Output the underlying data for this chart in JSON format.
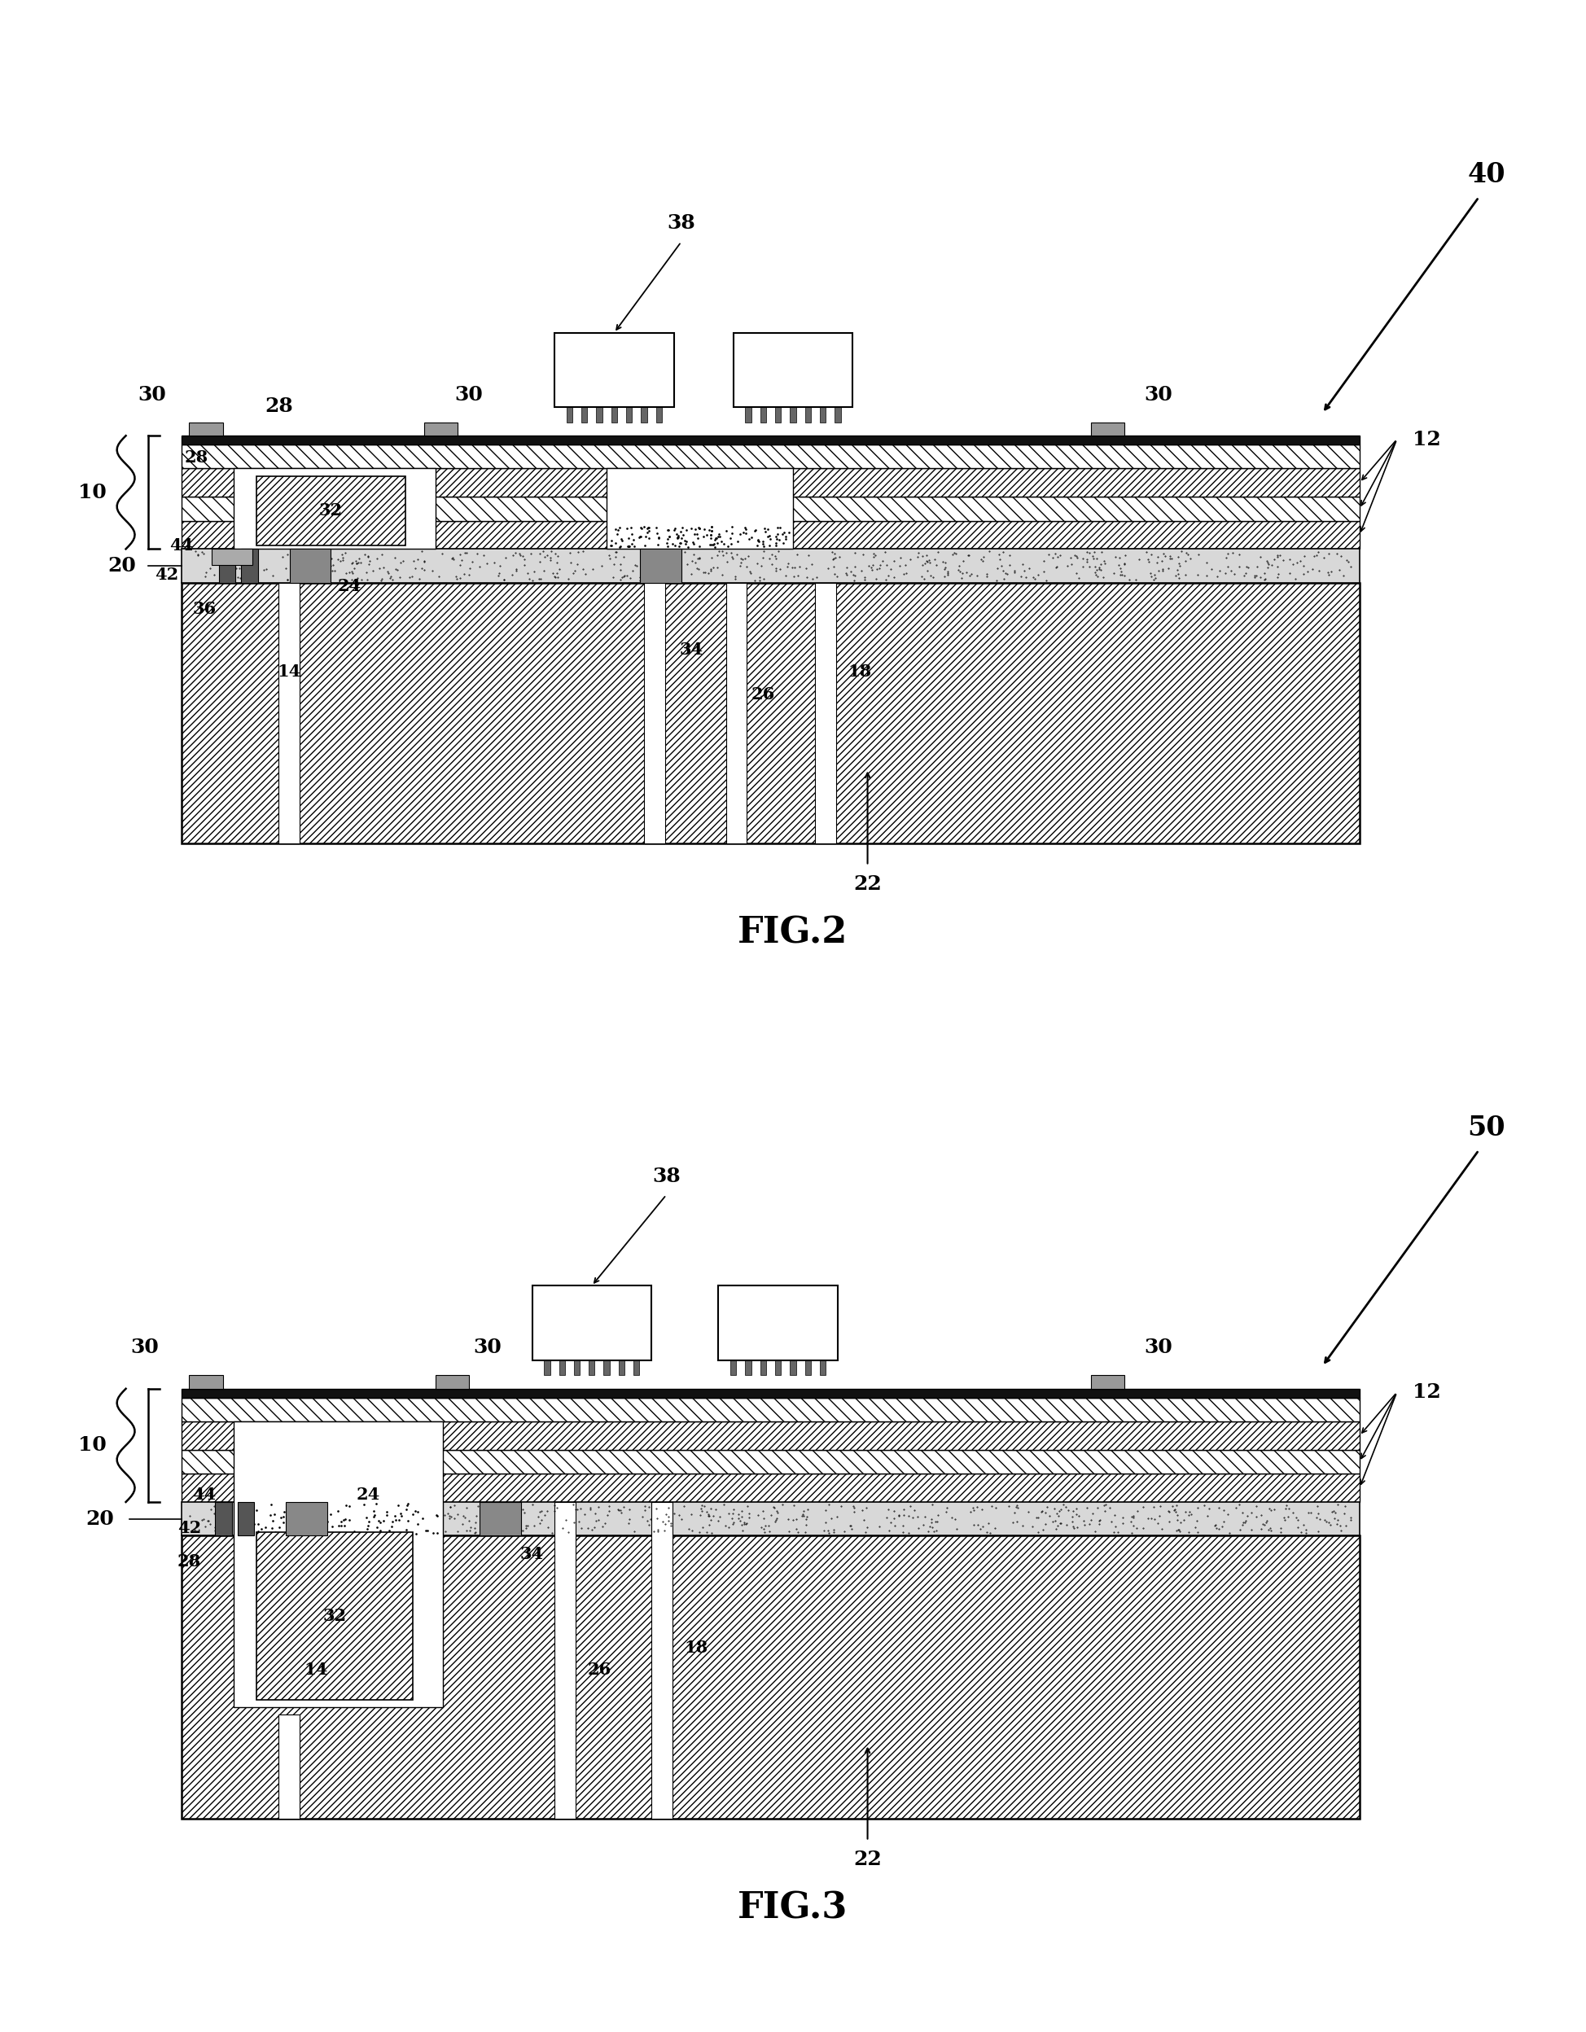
{
  "bg_color": "#ffffff",
  "lc": "#000000",
  "fig2_label": "FIG.2",
  "fig3_label": "FIG.3",
  "fig2_num": "40",
  "fig3_num": "50",
  "fsize_big": 24,
  "fsize_med": 18,
  "fsize_small": 15,
  "fsize_caption": 32,
  "hatch_main": "////",
  "hatch_back": "\\\\\\\\",
  "heat_sink_color": "white",
  "pcb_layer_color": "white",
  "stipple_color": "#cccccc",
  "component_color": "white"
}
